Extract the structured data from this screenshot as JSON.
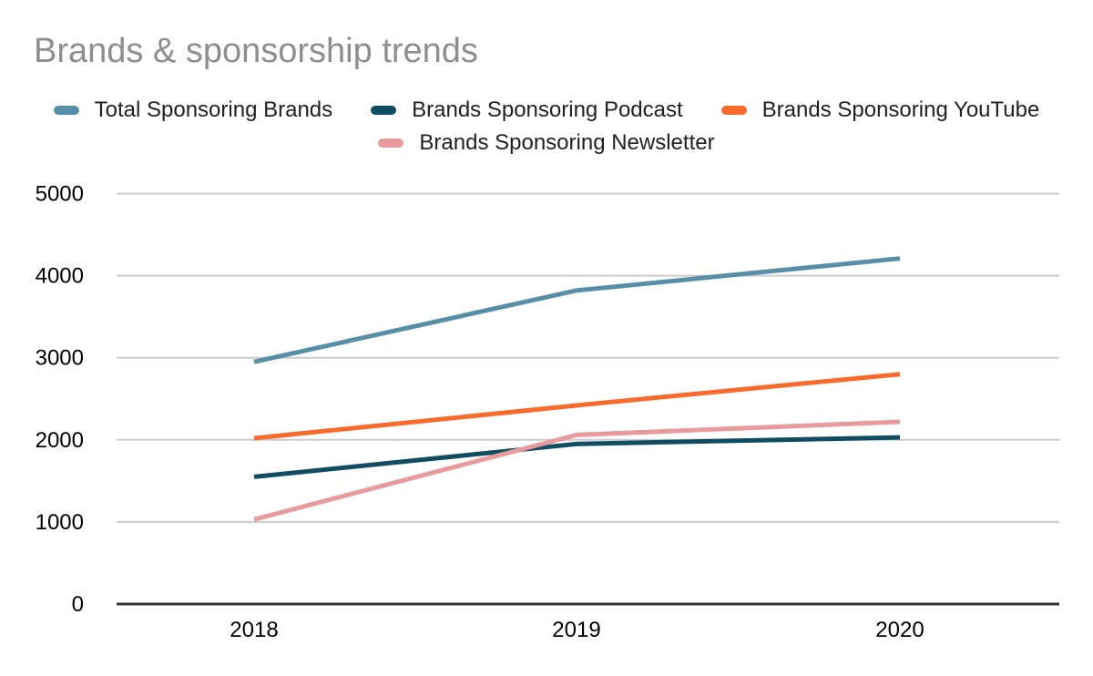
{
  "chart_data": {
    "type": "line",
    "title": "Brands & sponsorship trends",
    "categories": [
      "2018",
      "2019",
      "2020"
    ],
    "series": [
      {
        "name": "Total Sponsoring Brands",
        "color": "#588fa8",
        "values": [
          2950,
          3820,
          4210
        ]
      },
      {
        "name": "Brands Sponsoring Podcast",
        "color": "#114d61",
        "values": [
          1550,
          1950,
          2030
        ]
      },
      {
        "name": "Brands Sponsoring YouTube",
        "color": "#f96a2d",
        "values": [
          2020,
          2420,
          2800
        ]
      },
      {
        "name": "Brands Sponsoring Newsletter",
        "color": "#e99a9d",
        "values": [
          1030,
          2060,
          2220
        ]
      }
    ],
    "xlabel": "",
    "ylabel": "",
    "ylim": [
      0,
      5000
    ],
    "yticks": [
      0,
      1000,
      2000,
      3000,
      4000,
      5000
    ],
    "grid": true,
    "legend_position": "top",
    "colors": {
      "title_text": "#8e8e8e",
      "legend_text": "#212121",
      "tick_text": "#000000",
      "gridline": "#cccccc",
      "axis_line": "#333333",
      "background": "#ffffff"
    }
  }
}
